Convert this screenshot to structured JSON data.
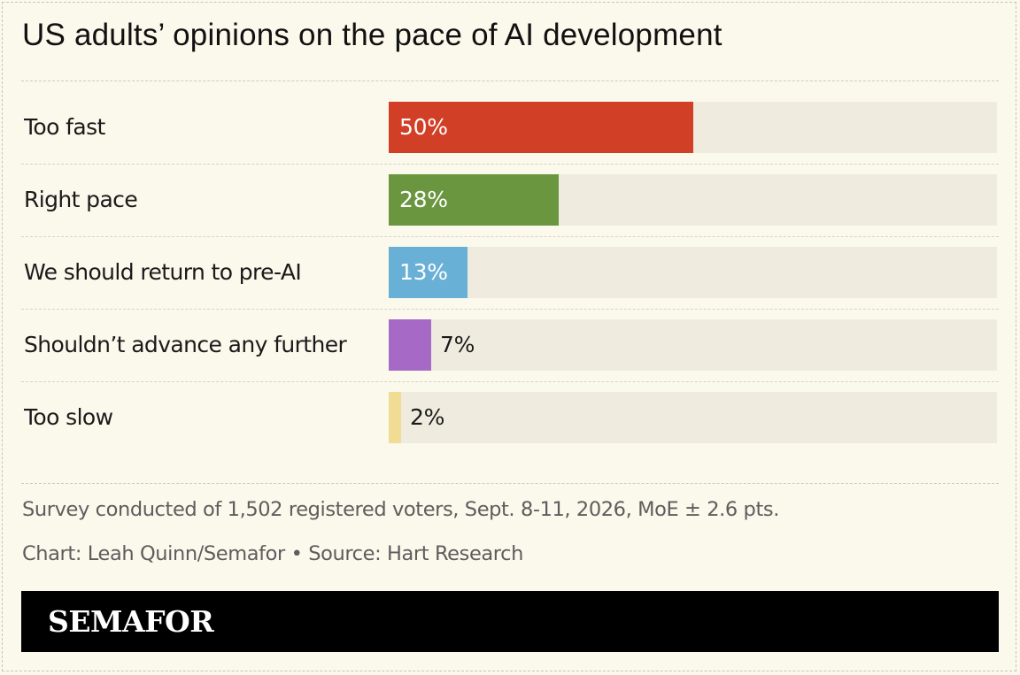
{
  "colors": {
    "background": "#fbf8ec",
    "track": "#efebdf",
    "text": "#1a1a1a",
    "muted_text": "#5d5d5d",
    "brand_bar": "#000000",
    "value_inside": "#ffffff",
    "value_outside": "#1a1a1a"
  },
  "chart_data": {
    "type": "bar",
    "orientation": "horizontal",
    "title": "US adults’ opinions on the pace of AI development",
    "categories": [
      "Too fast",
      "Right pace",
      "We should return to pre-AI",
      "Shouldn’t advance any further",
      "Too slow"
    ],
    "values": [
      50,
      28,
      13,
      7,
      2
    ],
    "value_labels": [
      "50%",
      "28%",
      "13%",
      "7%",
      "2%"
    ],
    "bar_colors": [
      "#d23f27",
      "#6a9640",
      "#69b0d6",
      "#a66ac6",
      "#f1dc94"
    ],
    "xlim": [
      0,
      100
    ],
    "grid": false,
    "legend": "none"
  },
  "footer": {
    "survey_note": "Survey conducted of 1,502 registered voters, Sept. 8-11, 2026, MoE ± 2.6 pts.",
    "credit": "Chart: Leah Quinn/Semafor • Source: Hart Research"
  },
  "brand": {
    "logo_text": "SEMAFOR"
  }
}
